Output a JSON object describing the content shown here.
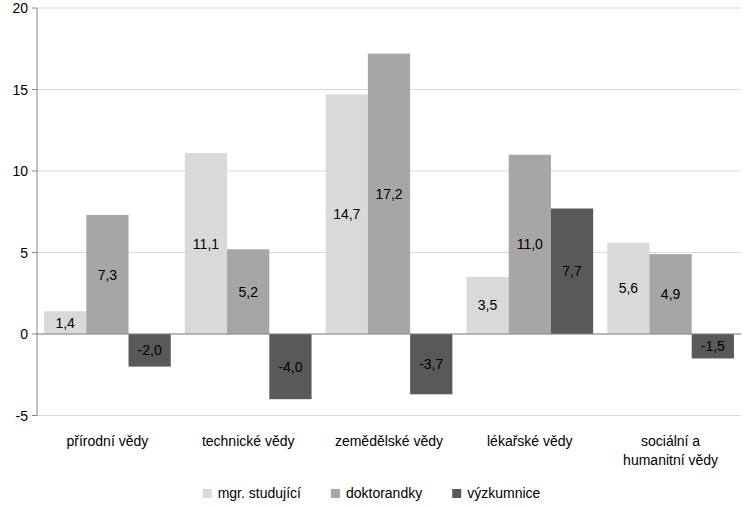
{
  "chart_data": {
    "type": "bar",
    "categories": [
      "přírodní vědy",
      "technické vědy",
      "zemědělské vědy",
      "lékařské vědy",
      "sociální a humanitní vědy"
    ],
    "series": [
      {
        "name": "mgr. studující",
        "color": "#d9d9d9",
        "values": [
          1.4,
          11.1,
          14.7,
          3.5,
          5.6
        ],
        "value_labels": [
          "1,4",
          "11,1",
          "14,7",
          "3,5",
          "5,6"
        ]
      },
      {
        "name": "doktorandky",
        "color": "#a6a6a6",
        "values": [
          7.3,
          5.2,
          17.2,
          11.0,
          4.9
        ],
        "value_labels": [
          "7,3",
          "5,2",
          "17,2",
          "11,0",
          "4,9"
        ]
      },
      {
        "name": "výzkumnice",
        "color": "#595959",
        "values": [
          -2.0,
          -4.0,
          -3.7,
          7.7,
          -1.5
        ],
        "value_labels": [
          "-2,0",
          "-4,0",
          "-3,7",
          "7,7",
          "-1,5"
        ]
      }
    ],
    "ylim": [
      -5,
      20
    ],
    "yticks": [
      -5,
      0,
      5,
      10,
      15,
      20
    ],
    "grid": true,
    "data_labels": true,
    "legend": "bottom"
  }
}
